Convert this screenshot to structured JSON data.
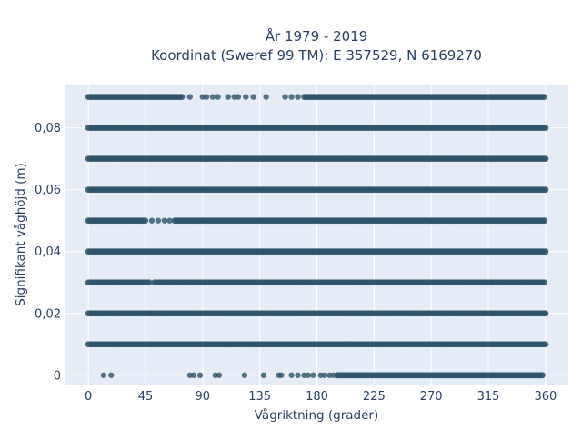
{
  "chart_data": {
    "type": "scatter",
    "title": [
      "År 1979 - 2019",
      "Koordinat (Sweref 99 TM): E 357529, N 6169270"
    ],
    "xlabel": "Vågriktning (grader)",
    "ylabel": "Signifikant våghöjd (m)",
    "xlim": [
      -18,
      378
    ],
    "ylim": [
      -0.003,
      0.094
    ],
    "xticks": [
      0,
      45,
      90,
      135,
      180,
      225,
      270,
      315,
      360
    ],
    "xtick_labels": [
      "0",
      "45",
      "90",
      "135",
      "180",
      "225",
      "270",
      "315",
      "360"
    ],
    "yticks": [
      0,
      0.02,
      0.04,
      0.06,
      0.08
    ],
    "ytick_labels": [
      "0",
      "0,02",
      "0,04",
      "0,06",
      "0,08"
    ],
    "grid": true,
    "legend": "none",
    "marker_color": "#2e5469",
    "plot_background": "#e5ecf6",
    "bands": [
      {
        "y": 0.09,
        "segments": [
          [
            0,
            75
          ],
          [
            170,
            360
          ]
        ],
        "sparse_x": [
          80,
          90,
          93,
          98,
          102,
          110,
          115,
          118,
          124,
          130,
          140,
          155,
          160,
          165,
          190
        ]
      },
      {
        "y": 0.08,
        "segments": [
          [
            0,
            360
          ]
        ],
        "sparse_x": []
      },
      {
        "y": 0.07,
        "segments": [
          [
            0,
            360
          ]
        ],
        "sparse_x": []
      },
      {
        "y": 0.06,
        "segments": [
          [
            0,
            360
          ]
        ],
        "sparse_x": []
      },
      {
        "y": 0.05,
        "segments": [
          [
            0,
            45
          ],
          [
            68,
            360
          ]
        ],
        "sparse_x": [
          50,
          55,
          60,
          64
        ]
      },
      {
        "y": 0.04,
        "segments": [
          [
            0,
            360
          ]
        ],
        "sparse_x": []
      },
      {
        "y": 0.03,
        "segments": [
          [
            0,
            48
          ],
          [
            52,
            360
          ]
        ],
        "sparse_x": []
      },
      {
        "y": 0.02,
        "segments": [
          [
            0,
            360
          ]
        ],
        "sparse_x": []
      },
      {
        "y": 0.01,
        "segments": [
          [
            0,
            360
          ]
        ],
        "sparse_x": []
      },
      {
        "y": 0,
        "segments": [
          [
            196,
            358
          ]
        ],
        "sparse_x": [
          12,
          18,
          80,
          83,
          88,
          100,
          103,
          123,
          138,
          150,
          152,
          160,
          165,
          170,
          173,
          177,
          183,
          186,
          190,
          193
        ]
      }
    ]
  }
}
